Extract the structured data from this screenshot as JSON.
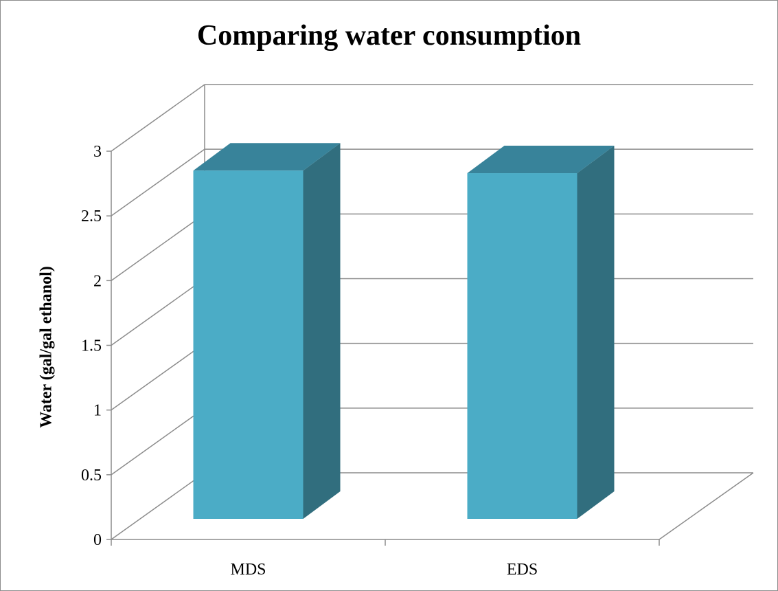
{
  "chart_data": {
    "type": "bar",
    "title": "Comparing water consumption",
    "ylabel": "Water  (gal/gal ethanol)",
    "xlabel": "",
    "categories": [
      "MDS",
      "EDS"
    ],
    "values": [
      2.85,
      2.83
    ],
    "ylim": [
      0,
      3
    ],
    "yticks": [
      0,
      0.5,
      1,
      1.5,
      2,
      2.5,
      3
    ],
    "ytick_labels": [
      "0",
      "0.5",
      "1",
      "1.5",
      "2",
      "2.5",
      "3"
    ],
    "grid": true,
    "legend": "none",
    "style": "3d-column",
    "colors": {
      "bar_front": "#4bacc6",
      "bar_top": "#38839a",
      "bar_side": "#316e7e",
      "grid": "#8c8c8c"
    }
  }
}
